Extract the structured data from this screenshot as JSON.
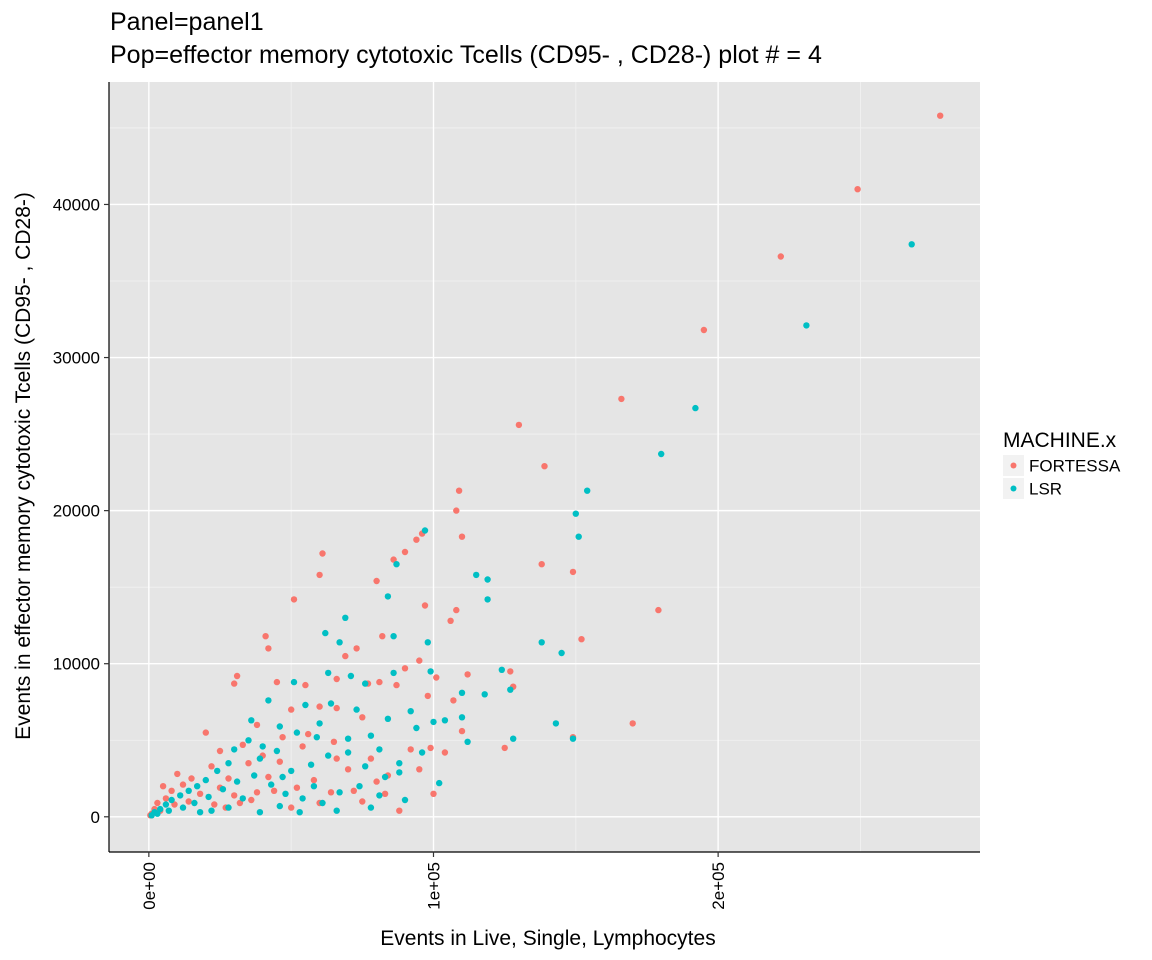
{
  "chart_data": {
    "type": "scatter",
    "title": "Panel=panel1",
    "subtitle": "Pop=effector memory cytotoxic Tcells (CD95- , CD28-) plot # = 4",
    "xlabel": "Events in Live, Single, Lymphocytes",
    "ylabel": "Events in effector memory cytotoxic Tcells (CD95- ,  CD28-)",
    "xlim": [
      -14000,
      292000
    ],
    "ylim": [
      -2300,
      48000
    ],
    "x_ticks": [
      0,
      100000,
      200000
    ],
    "x_tick_labels": [
      "0e+00",
      "1e+05",
      "2e+05"
    ],
    "y_ticks": [
      0,
      10000,
      20000,
      30000,
      40000
    ],
    "y_tick_labels": [
      "0",
      "10000",
      "20000",
      "30000",
      "40000"
    ],
    "grid": true,
    "legend": {
      "title": "MACHINE.x",
      "position": "right"
    },
    "series": [
      {
        "name": "FORTESSA",
        "color": "#F8766D",
        "points": [
          [
            278000,
            45800
          ],
          [
            249000,
            41000
          ],
          [
            222000,
            36600
          ],
          [
            195000,
            31800
          ],
          [
            166000,
            27300
          ],
          [
            130000,
            25600
          ],
          [
            139000,
            22900
          ],
          [
            109000,
            21300
          ],
          [
            108000,
            20000
          ],
          [
            110000,
            18300
          ],
          [
            96000,
            18500
          ],
          [
            94000,
            18100
          ],
          [
            90000,
            17300
          ],
          [
            86000,
            16800
          ],
          [
            61000,
            17200
          ],
          [
            60000,
            15800
          ],
          [
            138000,
            16500
          ],
          [
            149000,
            16000
          ],
          [
            179000,
            13500
          ],
          [
            80000,
            15400
          ],
          [
            51000,
            14200
          ],
          [
            97000,
            13800
          ],
          [
            108000,
            13500
          ],
          [
            106000,
            12800
          ],
          [
            152000,
            11600
          ],
          [
            41000,
            11800
          ],
          [
            42000,
            11000
          ],
          [
            31000,
            9200
          ],
          [
            30000,
            8700
          ],
          [
            45000,
            8800
          ],
          [
            55000,
            8600
          ],
          [
            69000,
            10500
          ],
          [
            66000,
            9000
          ],
          [
            73000,
            11000
          ],
          [
            77000,
            8700
          ],
          [
            81000,
            8800
          ],
          [
            82000,
            11800
          ],
          [
            90000,
            9700
          ],
          [
            95000,
            10200
          ],
          [
            87000,
            8600
          ],
          [
            101000,
            9100
          ],
          [
            127000,
            9500
          ],
          [
            128000,
            8500
          ],
          [
            112000,
            9300
          ],
          [
            50000,
            7000
          ],
          [
            60000,
            7200
          ],
          [
            66000,
            7100
          ],
          [
            75000,
            6500
          ],
          [
            98000,
            7900
          ],
          [
            107000,
            7600
          ],
          [
            170000,
            6100
          ],
          [
            149000,
            5200
          ],
          [
            125000,
            4500
          ],
          [
            38000,
            6000
          ],
          [
            33000,
            4700
          ],
          [
            20000,
            5500
          ],
          [
            25000,
            4300
          ],
          [
            22000,
            3300
          ],
          [
            28000,
            2500
          ],
          [
            35000,
            3500
          ],
          [
            40000,
            4000
          ],
          [
            47000,
            5200
          ],
          [
            56000,
            5400
          ],
          [
            65000,
            4900
          ],
          [
            70000,
            3100
          ],
          [
            78000,
            3800
          ],
          [
            84000,
            2700
          ],
          [
            92000,
            4400
          ],
          [
            99000,
            4500
          ],
          [
            100000,
            1500
          ],
          [
            83000,
            1500
          ],
          [
            88000,
            400
          ],
          [
            75000,
            1000
          ],
          [
            60000,
            900
          ],
          [
            50000,
            600
          ],
          [
            44000,
            1700
          ],
          [
            36000,
            1100
          ],
          [
            30000,
            1400
          ],
          [
            25000,
            1900
          ],
          [
            15000,
            2500
          ],
          [
            12000,
            2100
          ],
          [
            10000,
            2800
          ],
          [
            8000,
            1700
          ],
          [
            6000,
            1200
          ],
          [
            5000,
            2000
          ],
          [
            3000,
            900
          ],
          [
            2000,
            500
          ],
          [
            1000,
            200
          ],
          [
            500,
            100
          ],
          [
            4000,
            400
          ],
          [
            9000,
            800
          ],
          [
            14000,
            1000
          ],
          [
            18000,
            1500
          ],
          [
            23000,
            800
          ],
          [
            27000,
            600
          ],
          [
            32000,
            900
          ],
          [
            38000,
            1600
          ],
          [
            52000,
            1900
          ],
          [
            58000,
            2400
          ],
          [
            64000,
            1600
          ],
          [
            72000,
            1700
          ],
          [
            80000,
            2300
          ],
          [
            95000,
            3100
          ],
          [
            104000,
            4200
          ],
          [
            110000,
            5600
          ],
          [
            66000,
            3800
          ],
          [
            54000,
            4600
          ],
          [
            46000,
            3600
          ],
          [
            42000,
            2600
          ]
        ]
      },
      {
        "name": "LSR",
        "color": "#00BFC4",
        "points": [
          [
            268000,
            37400
          ],
          [
            231000,
            32100
          ],
          [
            192000,
            26700
          ],
          [
            180000,
            23700
          ],
          [
            154000,
            21300
          ],
          [
            150000,
            19800
          ],
          [
            151000,
            18300
          ],
          [
            115000,
            15800
          ],
          [
            119000,
            15500
          ],
          [
            119000,
            14200
          ],
          [
            97000,
            18700
          ],
          [
            87000,
            16500
          ],
          [
            84000,
            14400
          ],
          [
            138000,
            11400
          ],
          [
            145000,
            10700
          ],
          [
            69000,
            13000
          ],
          [
            62000,
            12000
          ],
          [
            67000,
            11400
          ],
          [
            86000,
            11800
          ],
          [
            98000,
            11400
          ],
          [
            124000,
            9600
          ],
          [
            127000,
            8300
          ],
          [
            118000,
            8000
          ],
          [
            110000,
            8100
          ],
          [
            99000,
            9500
          ],
          [
            86000,
            9400
          ],
          [
            76000,
            8700
          ],
          [
            71000,
            9200
          ],
          [
            63000,
            9400
          ],
          [
            51000,
            8800
          ],
          [
            55000,
            7300
          ],
          [
            64000,
            7400
          ],
          [
            42000,
            7600
          ],
          [
            36000,
            6300
          ],
          [
            46000,
            5900
          ],
          [
            52000,
            5500
          ],
          [
            60000,
            6100
          ],
          [
            70000,
            5100
          ],
          [
            78000,
            5300
          ],
          [
            84000,
            6400
          ],
          [
            92000,
            6900
          ],
          [
            100000,
            6200
          ],
          [
            104000,
            6300
          ],
          [
            110000,
            6500
          ],
          [
            112000,
            4900
          ],
          [
            128000,
            5100
          ],
          [
            143000,
            6100
          ],
          [
            149000,
            5100
          ],
          [
            96000,
            4200
          ],
          [
            88000,
            3500
          ],
          [
            83000,
            2600
          ],
          [
            76000,
            3300
          ],
          [
            70000,
            4200
          ],
          [
            63000,
            4000
          ],
          [
            57000,
            3400
          ],
          [
            50000,
            3000
          ],
          [
            45000,
            4300
          ],
          [
            40000,
            4600
          ],
          [
            35000,
            5000
          ],
          [
            30000,
            4400
          ],
          [
            28000,
            3500
          ],
          [
            24000,
            3000
          ],
          [
            20000,
            2400
          ],
          [
            17000,
            2000
          ],
          [
            14000,
            1700
          ],
          [
            11000,
            1400
          ],
          [
            8000,
            1100
          ],
          [
            6000,
            800
          ],
          [
            4000,
            500
          ],
          [
            2000,
            300
          ],
          [
            1000,
            100
          ],
          [
            3000,
            200
          ],
          [
            7000,
            400
          ],
          [
            12000,
            600
          ],
          [
            16000,
            900
          ],
          [
            21000,
            1300
          ],
          [
            26000,
            1800
          ],
          [
            31000,
            2300
          ],
          [
            37000,
            2700
          ],
          [
            43000,
            2100
          ],
          [
            48000,
            1500
          ],
          [
            54000,
            1200
          ],
          [
            61000,
            900
          ],
          [
            67000,
            1600
          ],
          [
            74000,
            2000
          ],
          [
            81000,
            1400
          ],
          [
            90000,
            1100
          ],
          [
            102000,
            2200
          ],
          [
            88000,
            2900
          ],
          [
            58000,
            2000
          ],
          [
            33000,
            1200
          ],
          [
            28000,
            600
          ],
          [
            22000,
            400
          ],
          [
            18000,
            300
          ],
          [
            39000,
            300
          ],
          [
            46000,
            700
          ],
          [
            53000,
            300
          ],
          [
            66000,
            400
          ],
          [
            78000,
            600
          ],
          [
            94000,
            5800
          ],
          [
            73000,
            7000
          ],
          [
            81000,
            4400
          ],
          [
            59000,
            5200
          ],
          [
            47000,
            2600
          ],
          [
            39000,
            3800
          ]
        ]
      }
    ]
  }
}
